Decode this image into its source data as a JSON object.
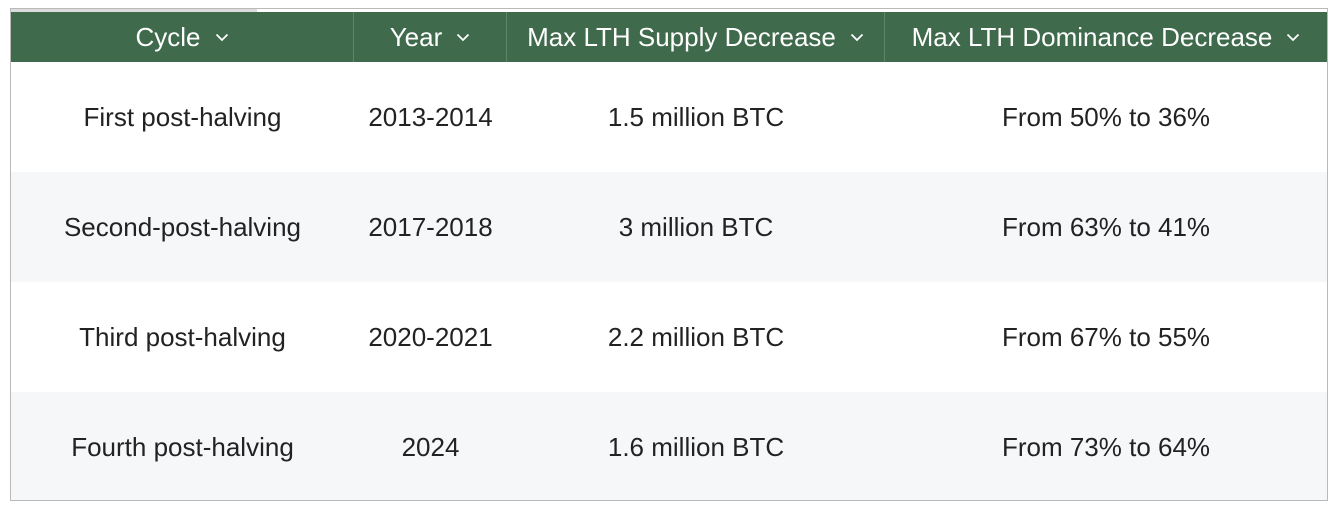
{
  "table": {
    "columns": [
      {
        "label": "Cycle",
        "icon": "chevron-down-icon"
      },
      {
        "label": "Year",
        "icon": "chevron-down-icon"
      },
      {
        "label": "Max LTH Supply Decrease",
        "icon": "chevron-down-icon"
      },
      {
        "label": "Max LTH Dominance Decrease",
        "icon": "chevron-down-icon"
      }
    ],
    "rows": [
      [
        "First post-halving",
        "2013-2014",
        "1.5 million BTC",
        "From 50% to 36%"
      ],
      [
        "Second-post-halving",
        "2017-2018",
        "3 million BTC",
        "From 63% to 41%"
      ],
      [
        "Third post-halving",
        "2020-2021",
        "2.2 million BTC",
        "From 67% to 55%"
      ],
      [
        "Fourth post-halving",
        "2024",
        "1.6 million BTC",
        "From 73% to 64%"
      ]
    ]
  },
  "colors": {
    "header_bg": "#3f6a4c",
    "header_text": "#ffffff",
    "row_alt_bg": "#f6f7f9",
    "text": "#222222"
  }
}
